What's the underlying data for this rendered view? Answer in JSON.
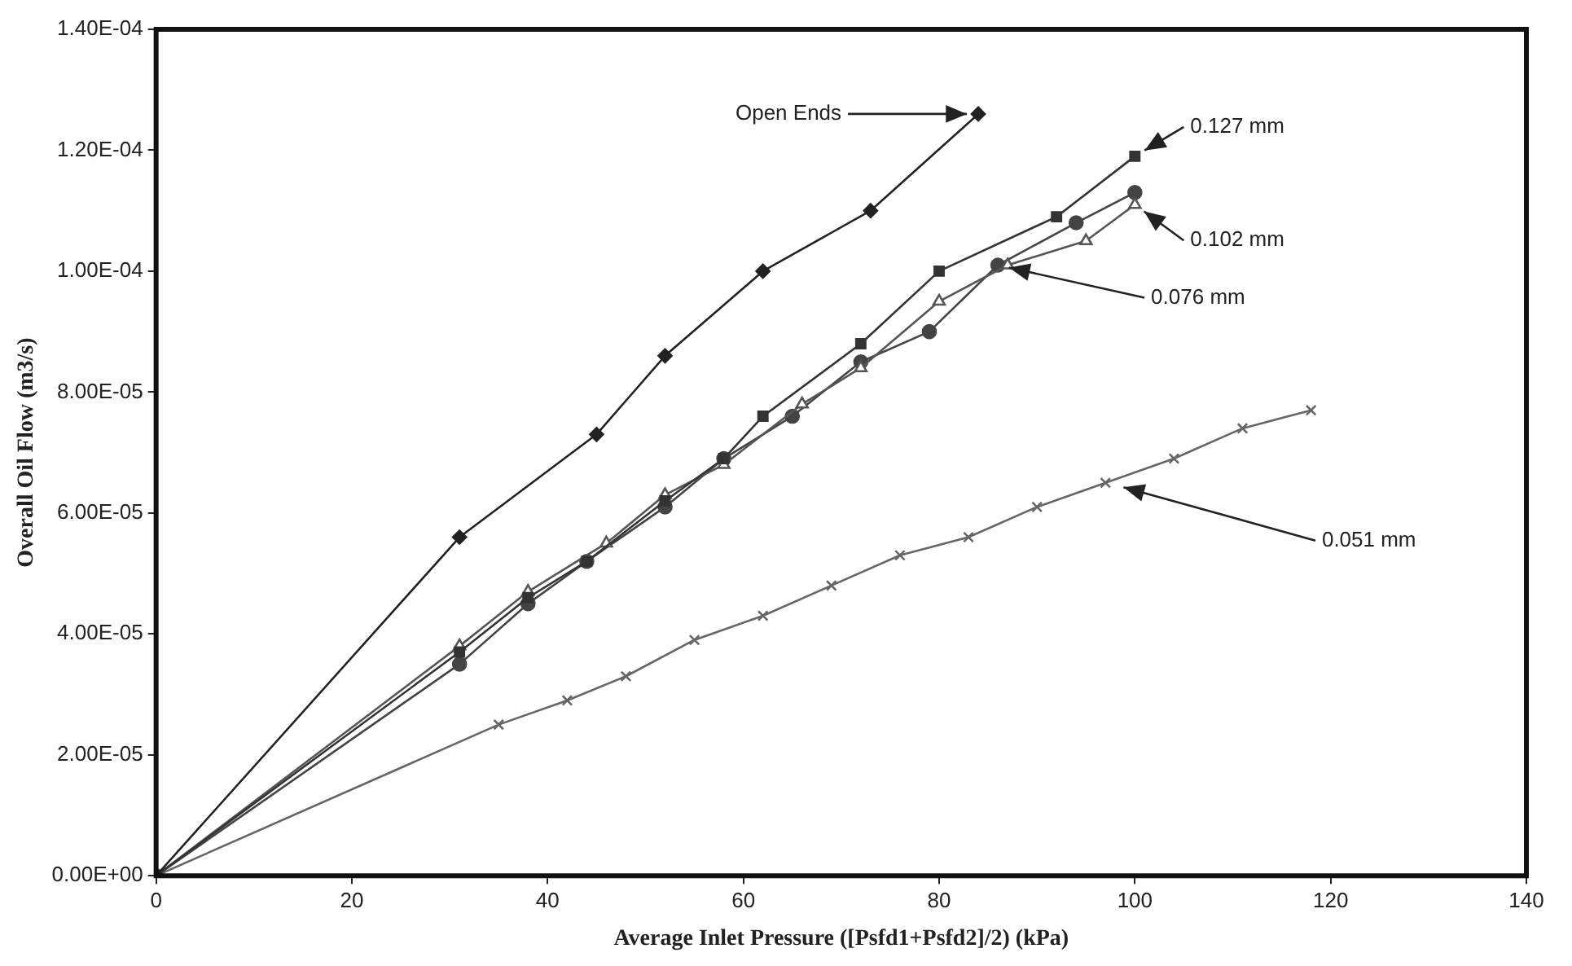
{
  "chart_data": {
    "type": "line",
    "xlabel": "Average Inlet Pressure ([Psfd1+Psfd2]/2) (kPa)",
    "ylabel": "Overall Oil Flow (m3/s)",
    "xlim": [
      0,
      140
    ],
    "xticks": [
      0,
      20,
      40,
      60,
      80,
      100,
      120,
      140
    ],
    "ylim": [
      0,
      0.00014
    ],
    "yticks": [
      {
        "value": 0,
        "label": "0.00E+00"
      },
      {
        "value": 2e-05,
        "label": "2.00E-05"
      },
      {
        "value": 4e-05,
        "label": "4.00E-05"
      },
      {
        "value": 6e-05,
        "label": "6.00E-05"
      },
      {
        "value": 8e-05,
        "label": "8.00E-05"
      },
      {
        "value": 0.0001,
        "label": "1.00E-04"
      },
      {
        "value": 0.00012,
        "label": "1.20E-04"
      },
      {
        "value": 0.00014,
        "label": "1.40E-04"
      }
    ],
    "grid": false,
    "legend": false,
    "series": [
      {
        "color": "#222222",
        "marker": "diamond",
        "x": [
          0,
          31,
          45,
          52,
          62,
          73,
          84
        ],
        "values": [
          0,
          5.6e-05,
          7.3e-05,
          8.6e-05,
          0.0001,
          0.00011,
          0.000126
        ]
      },
      {
        "color": "#333333",
        "marker": "square",
        "x": [
          0,
          31,
          38,
          44,
          52,
          58,
          62,
          72,
          80,
          92,
          100
        ],
        "values": [
          0,
          3.7e-05,
          4.6e-05,
          5.2e-05,
          6.2e-05,
          6.9e-05,
          7.6e-05,
          8.8e-05,
          0.0001,
          0.000109,
          0.000119
        ]
      },
      {
        "color": "#555555",
        "marker": "triangle",
        "x": [
          0,
          31,
          38,
          46,
          52,
          58,
          66,
          72,
          80,
          87,
          95,
          100
        ],
        "values": [
          0,
          3.8e-05,
          4.7e-05,
          5.5e-05,
          6.3e-05,
          6.8e-05,
          7.8e-05,
          8.4e-05,
          9.5e-05,
          0.000101,
          0.000105,
          0.000111
        ]
      },
      {
        "color": "#444444",
        "marker": "circle",
        "x": [
          0,
          31,
          38,
          44,
          52,
          58,
          65,
          72,
          79,
          86,
          94,
          100
        ],
        "values": [
          0,
          3.5e-05,
          4.5e-05,
          5.2e-05,
          6.1e-05,
          6.9e-05,
          7.6e-05,
          8.5e-05,
          9e-05,
          0.000101,
          0.000108,
          0.000113
        ]
      },
      {
        "color": "#666666",
        "marker": "cross",
        "x": [
          0,
          35,
          42,
          48,
          55,
          62,
          69,
          76,
          83,
          90,
          97,
          104,
          111,
          118
        ],
        "values": [
          0,
          2.5e-05,
          2.9e-05,
          3.3e-05,
          3.9e-05,
          4.3e-05,
          4.8e-05,
          5.3e-05,
          5.6e-05,
          6.1e-05,
          6.5e-05,
          6.9e-05,
          7.4e-05,
          7.7e-05
        ]
      }
    ],
    "annotations": [
      {
        "text": "Open Ends",
        "x": 84,
        "y": 0.000126
      },
      {
        "text": "0.127 mm",
        "x": 100,
        "y": 0.000119
      },
      {
        "text": "0.102 mm",
        "x": 100,
        "y": 0.000111
      },
      {
        "text": "0.076 mm",
        "x": 86,
        "y": 0.000101
      },
      "0.051 mm"
    ]
  }
}
